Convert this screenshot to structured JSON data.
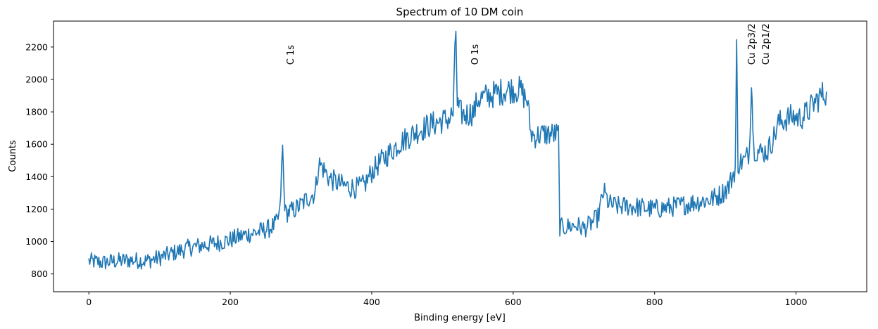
{
  "chart_data": {
    "type": "line",
    "title": "Spectrum of 10 DM coin",
    "xlabel": "Binding energy [eV]",
    "ylabel": "Counts",
    "xlim": [
      -50,
      1100
    ],
    "ylim": [
      690,
      2360
    ],
    "xticks": [
      0,
      200,
      400,
      600,
      800,
      1000
    ],
    "yticks": [
      800,
      1000,
      1200,
      1400,
      1600,
      1800,
      2000,
      2200
    ],
    "grid": false,
    "line_color": "#1f77b4",
    "annotations": [
      {
        "text": "C 1s",
        "x": 285,
        "y": 2090
      },
      {
        "text": "O 1s",
        "x": 546,
        "y": 2090
      },
      {
        "text": "Cu 2p3/2",
        "x": 937,
        "y": 2090
      },
      {
        "text": "Cu 2p1/2",
        "x": 957,
        "y": 2090
      }
    ],
    "series": [
      {
        "x": [
          0,
          20,
          40,
          60,
          80,
          100,
          120,
          140,
          160,
          180,
          200,
          220,
          240,
          255,
          265,
          270,
          274,
          276,
          278,
          282,
          290,
          300,
          310,
          320,
          325,
          330,
          340,
          350,
          360,
          370,
          380,
          390,
          400,
          410,
          420,
          440,
          460,
          480,
          500,
          510,
          515,
          519,
          521,
          524,
          530,
          545,
          550,
          560,
          570,
          580,
          590,
          600,
          610,
          615,
          620,
          625,
          630,
          640,
          650,
          660,
          664,
          666,
          670,
          680,
          690,
          700,
          710,
          720,
          728,
          735,
          740,
          750,
          760,
          780,
          800,
          820,
          840,
          860,
          880,
          895,
          905,
          910,
          914,
          916,
          918,
          922,
          928,
          934,
          937,
          940,
          945,
          950,
          960,
          970,
          975,
          985,
          995,
          1005,
          1015,
          1025,
          1035,
          1043
        ],
        "y": [
          880,
          870,
          880,
          885,
          880,
          900,
          930,
          960,
          975,
          990,
          1010,
          1040,
          1060,
          1080,
          1110,
          1170,
          1580,
          1310,
          1175,
          1180,
          1195,
          1225,
          1270,
          1300,
          1480,
          1460,
          1390,
          1365,
          1345,
          1335,
          1330,
          1350,
          1430,
          1480,
          1525,
          1610,
          1670,
          1715,
          1745,
          1760,
          1790,
          2300,
          1850,
          1800,
          1780,
          1800,
          1880,
          1890,
          1905,
          1920,
          1935,
          1940,
          1935,
          1900,
          1870,
          1670,
          1650,
          1660,
          1665,
          1660,
          1660,
          1090,
          1085,
          1095,
          1100,
          1080,
          1110,
          1150,
          1310,
          1235,
          1225,
          1215,
          1220,
          1210,
          1200,
          1210,
          1225,
          1245,
          1260,
          1295,
          1340,
          1400,
          1450,
          2180,
          1480,
          1490,
          1500,
          1560,
          2020,
          1580,
          1560,
          1550,
          1560,
          1660,
          1730,
          1755,
          1770,
          1760,
          1790,
          1850,
          1900,
          1925
        ]
      }
    ]
  }
}
